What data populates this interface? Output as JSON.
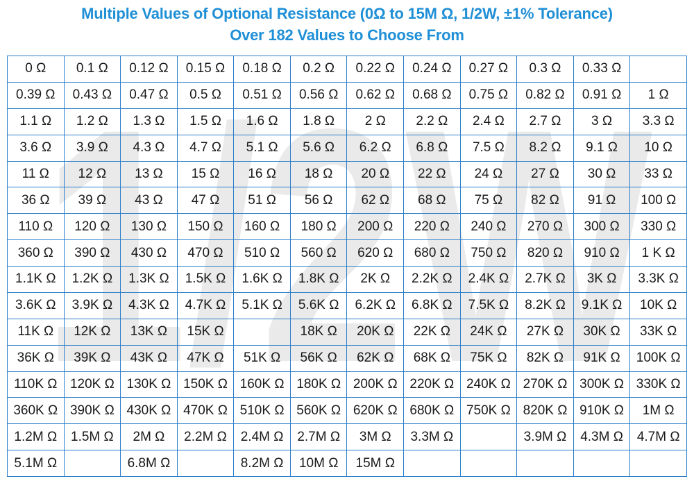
{
  "header": {
    "title_line1": "Multiple Values of Optional Resistance (0Ω to 15M Ω, 1/2W, ±1% Tolerance)",
    "title_line2": "Over 182 Values to Choose From"
  },
  "watermark": {
    "text": "1/2W",
    "color": "#d9d9d9"
  },
  "colors": {
    "accent": "#1f8fd6",
    "grid_border": "#2b7ec9",
    "cell_text": "#1a1a1a"
  },
  "table": {
    "rows": [
      [
        "0 Ω",
        "0.1 Ω",
        "0.12 Ω",
        "0.15 Ω",
        "0.18 Ω",
        "0.2 Ω",
        "0.22 Ω",
        "0.24 Ω",
        "0.27 Ω",
        "0.3 Ω",
        "0.33 Ω",
        ""
      ],
      [
        "0.39 Ω",
        "0.43 Ω",
        "0.47 Ω",
        "0.5 Ω",
        "0.51 Ω",
        "0.56 Ω",
        "0.62 Ω",
        "0.68 Ω",
        "0.75 Ω",
        "0.82 Ω",
        "0.91 Ω",
        "1 Ω"
      ],
      [
        "1.1 Ω",
        "1.2 Ω",
        "1.3 Ω",
        "1.5 Ω",
        "1.6 Ω",
        "1.8 Ω",
        "2 Ω",
        "2.2 Ω",
        "2.4 Ω",
        "2.7 Ω",
        "3 Ω",
        "3.3 Ω"
      ],
      [
        "3.6 Ω",
        "3.9 Ω",
        "4.3 Ω",
        "4.7 Ω",
        "5.1 Ω",
        "5.6 Ω",
        "6.2 Ω",
        "6.8 Ω",
        "7.5 Ω",
        "8.2 Ω",
        "9.1 Ω",
        "10 Ω"
      ],
      [
        "11 Ω",
        "12 Ω",
        "13 Ω",
        "15 Ω",
        "16 Ω",
        "18 Ω",
        "20 Ω",
        "22 Ω",
        "24 Ω",
        "27 Ω",
        "30 Ω",
        "33 Ω"
      ],
      [
        "36 Ω",
        "39 Ω",
        "43 Ω",
        "47 Ω",
        "51 Ω",
        "56 Ω",
        "62 Ω",
        "68 Ω",
        "75 Ω",
        "82 Ω",
        "91 Ω",
        "100 Ω"
      ],
      [
        "110 Ω",
        "120 Ω",
        "130 Ω",
        "150 Ω",
        "160 Ω",
        "180 Ω",
        "200 Ω",
        "220 Ω",
        "240 Ω",
        "270 Ω",
        "300 Ω",
        "330 Ω"
      ],
      [
        "360 Ω",
        "390 Ω",
        "430 Ω",
        "470 Ω",
        "510 Ω",
        "560 Ω",
        "620 Ω",
        "680 Ω",
        "750 Ω",
        "820 Ω",
        "910 Ω",
        "1 K Ω"
      ],
      [
        "1.1K Ω",
        "1.2K Ω",
        "1.3K Ω",
        "1.5K Ω",
        "1.6K Ω",
        "1.8K Ω",
        "2K Ω",
        "2.2K Ω",
        "2.4K Ω",
        "2.7K Ω",
        "3K Ω",
        "3.3K Ω"
      ],
      [
        "3.6K Ω",
        "3.9K Ω",
        "4.3K Ω",
        "4.7K Ω",
        "5.1K Ω",
        "5.6K Ω",
        "6.2K Ω",
        "6.8K Ω",
        "7.5K Ω",
        "8.2K Ω",
        "9.1K Ω",
        "10K Ω"
      ],
      [
        "11K Ω",
        "12K Ω",
        "13K Ω",
        "15K Ω",
        "",
        "18K Ω",
        "20K Ω",
        "22K Ω",
        "24K Ω",
        "27K Ω",
        "30K Ω",
        "33K Ω"
      ],
      [
        "36K Ω",
        "39K Ω",
        "43K Ω",
        "47K Ω",
        "51K Ω",
        "56K Ω",
        "62K Ω",
        "68K Ω",
        "75K Ω",
        "82K Ω",
        "91K Ω",
        "100K Ω"
      ],
      [
        "110K Ω",
        "120K Ω",
        "130K Ω",
        "150K Ω",
        "160K Ω",
        "180K Ω",
        "200K Ω",
        "220K Ω",
        "240K Ω",
        "270K Ω",
        "300K Ω",
        "330K Ω"
      ],
      [
        "360K Ω",
        "390K Ω",
        "430K Ω",
        "470K Ω",
        "510K Ω",
        "560K Ω",
        "620K Ω",
        "680K Ω",
        "750K Ω",
        "820K Ω",
        "910K Ω",
        "1M Ω"
      ],
      [
        "1.2M Ω",
        "1.5M Ω",
        "2M Ω",
        "2.2M Ω",
        "2.4M Ω",
        "2.7M Ω",
        "3M Ω",
        "3.3M Ω",
        "",
        "3.9M Ω",
        "4.3M Ω",
        "4.7M Ω"
      ],
      [
        "5.1M Ω",
        "",
        "6.8M Ω",
        "",
        "8.2M Ω",
        "10M Ω",
        "15M Ω",
        "",
        "",
        "",
        "",
        ""
      ]
    ]
  }
}
